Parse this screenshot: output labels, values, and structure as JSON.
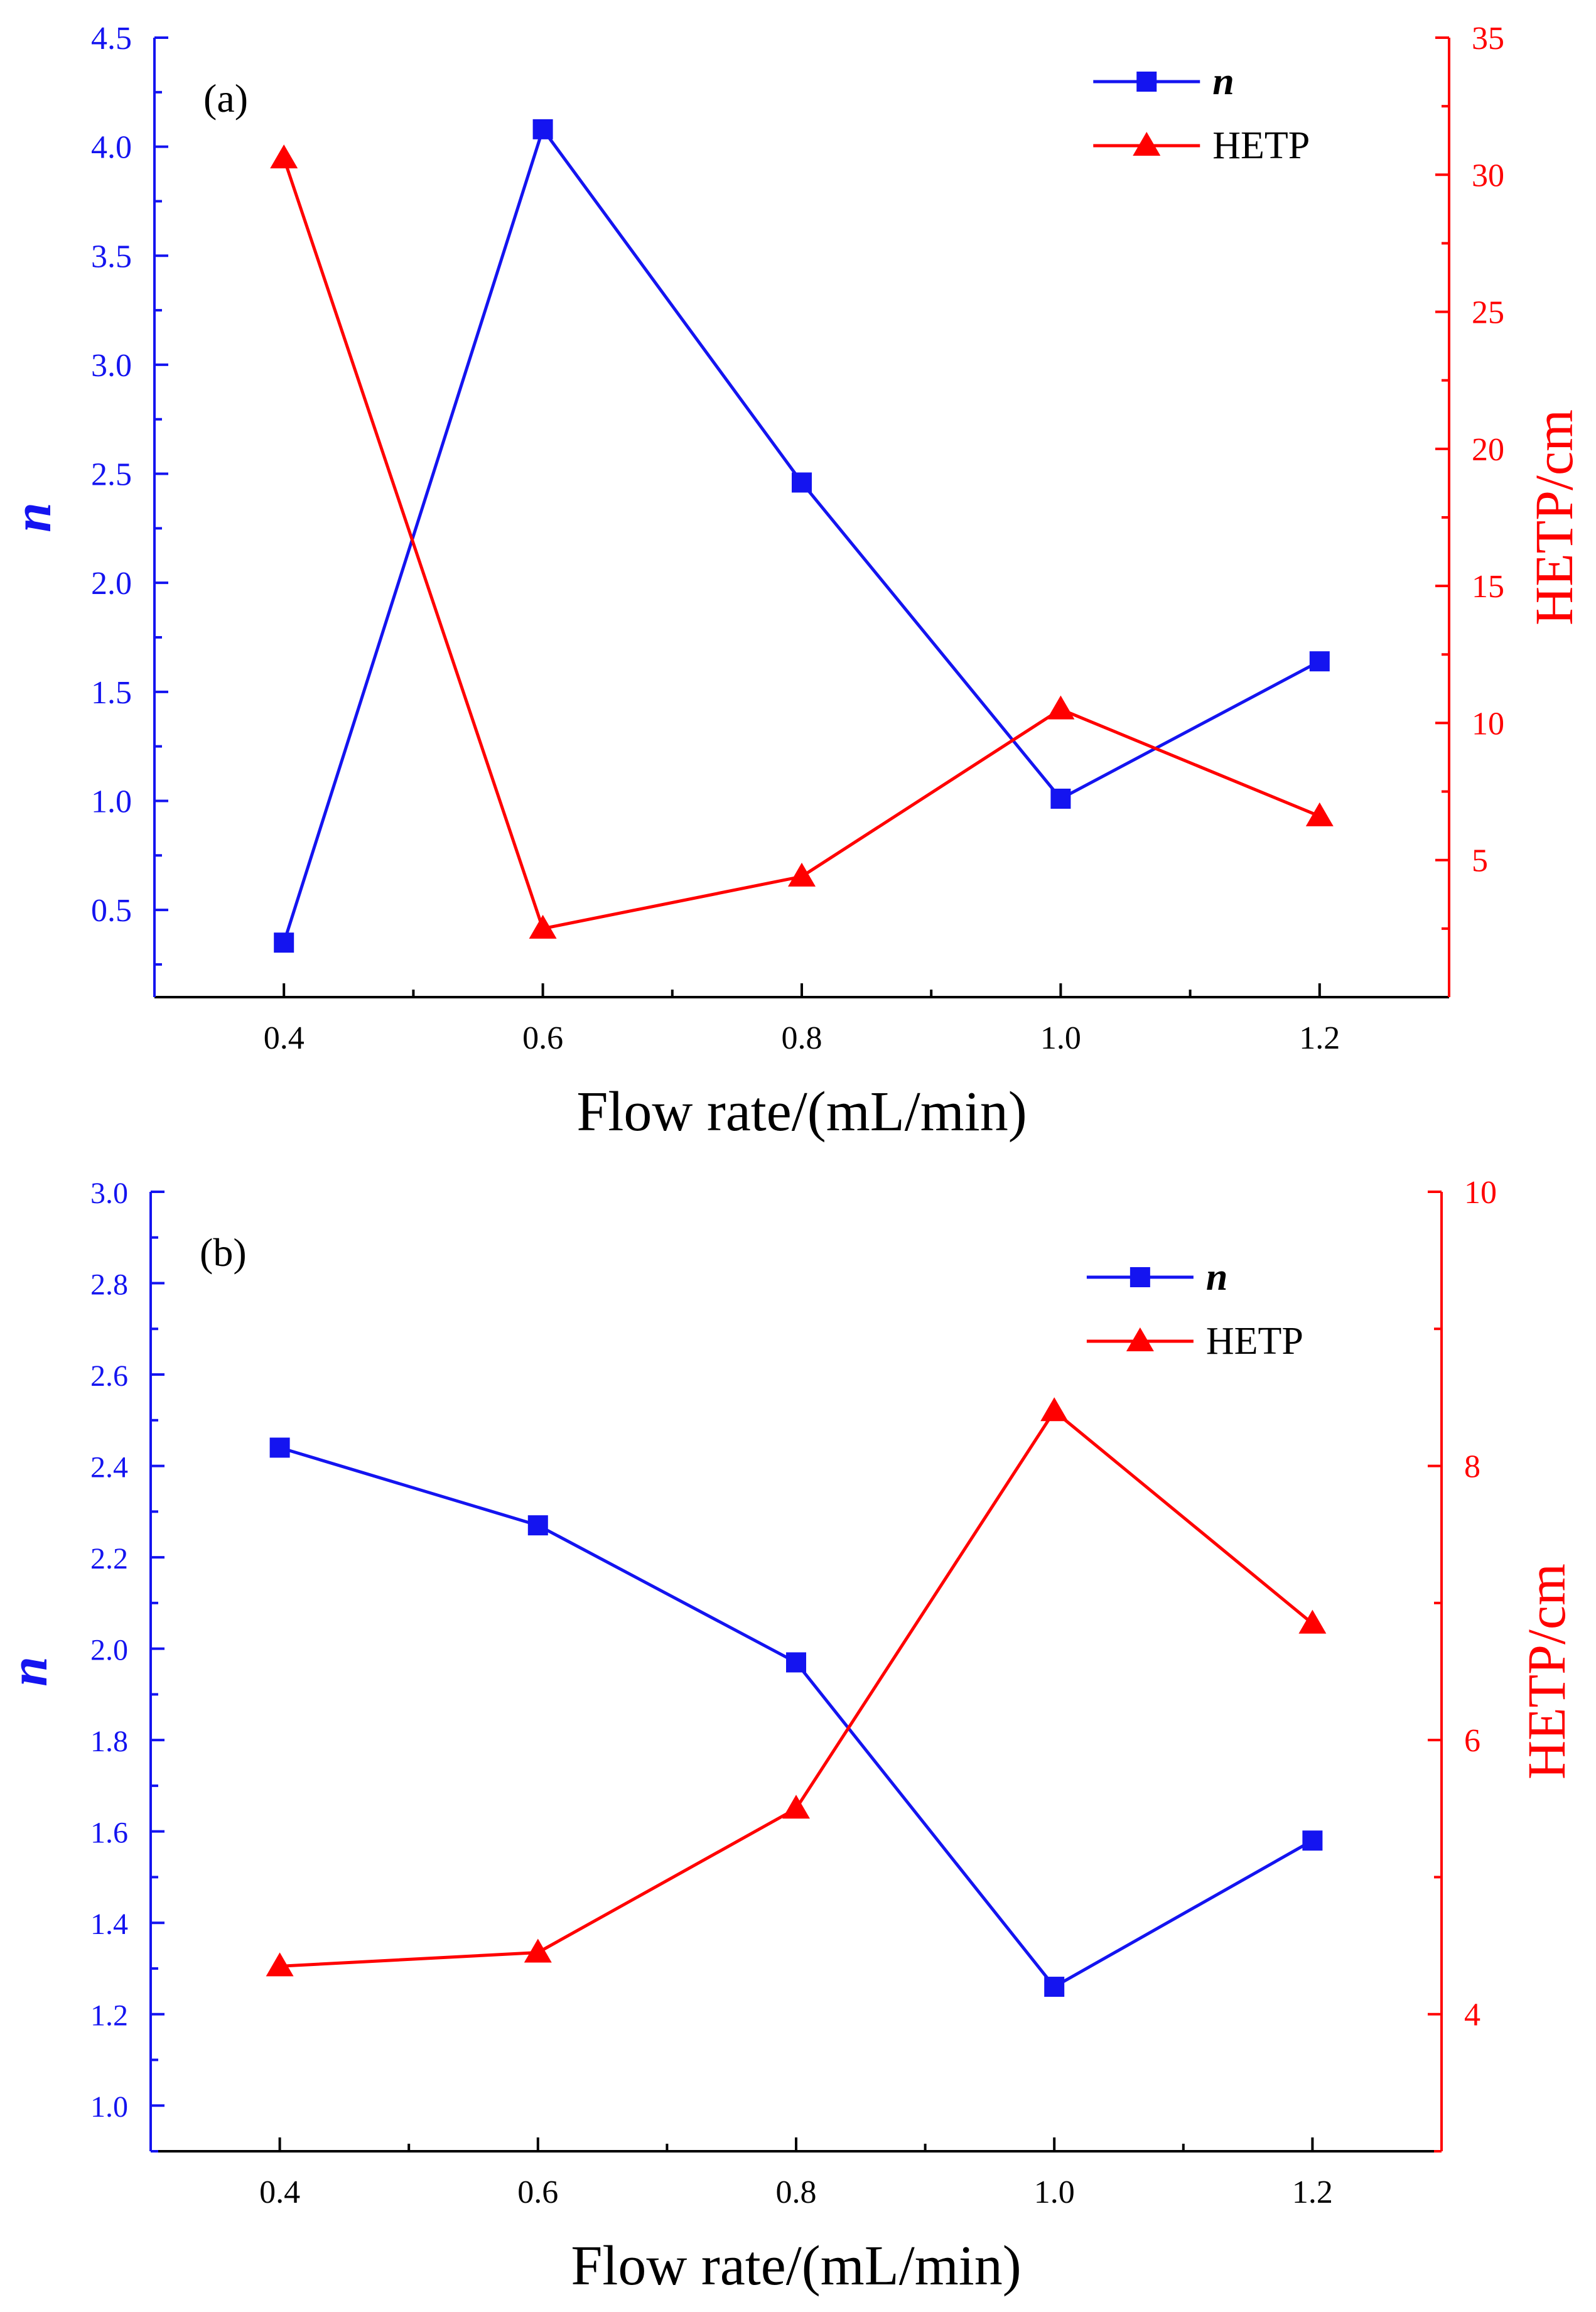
{
  "chart_data": [
    {
      "type": "line",
      "panel_label": "(a)",
      "xlabel": "Flow rate/(mL/min)",
      "ylabel_left": "n",
      "ylabel_right": "HETP/cm",
      "xlim": [
        0.3,
        1.3
      ],
      "ylim_left": [
        0.1,
        4.5
      ],
      "ylim_right": [
        0,
        35
      ],
      "x_ticks": [
        "0.4",
        "0.6",
        "0.8",
        "1.0",
        "1.2"
      ],
      "y_left_ticks": [
        "0.5",
        "1.0",
        "1.5",
        "2.0",
        "2.5",
        "3.0",
        "3.5",
        "4.0",
        "4.5"
      ],
      "y_right_ticks": [
        "5",
        "10",
        "15",
        "20",
        "25",
        "30",
        "35"
      ],
      "x": [
        0.4,
        0.6,
        0.8,
        1.0,
        1.2
      ],
      "legend": {
        "position": "top-right",
        "entries": [
          "n",
          "HETP"
        ]
      },
      "series": [
        {
          "name": "n",
          "axis": "left",
          "marker": "square",
          "color": "#1414f0",
          "values": [
            0.35,
            4.08,
            2.46,
            1.01,
            1.64
          ]
        },
        {
          "name": "HETP",
          "axis": "right",
          "marker": "triangle",
          "color": "#ff0000",
          "values": [
            30.6,
            2.5,
            4.4,
            10.5,
            6.6
          ]
        }
      ]
    },
    {
      "type": "line",
      "panel_label": "(b)",
      "xlabel": "Flow rate/(mL/min)",
      "ylabel_left": "n",
      "ylabel_right": "HETP/cm",
      "xlim": [
        0.3,
        1.3
      ],
      "ylim_left": [
        0.9,
        3.0
      ],
      "ylim_right": [
        3,
        10
      ],
      "x_ticks": [
        "0.4",
        "0.6",
        "0.8",
        "1.0",
        "1.2"
      ],
      "y_left_ticks": [
        "1.0",
        "1.2",
        "1.4",
        "1.6",
        "1.8",
        "2.0",
        "2.2",
        "2.4",
        "2.6",
        "2.8",
        "3.0"
      ],
      "y_right_ticks": [
        "4",
        "6",
        "8",
        "10"
      ],
      "x": [
        0.4,
        0.6,
        0.8,
        1.0,
        1.2
      ],
      "legend": {
        "position": "top-right",
        "entries": [
          "n",
          "HETP"
        ]
      },
      "series": [
        {
          "name": "n",
          "axis": "left",
          "marker": "square",
          "color": "#1414f0",
          "values": [
            2.44,
            2.27,
            1.97,
            1.26,
            1.58
          ]
        },
        {
          "name": "HETP",
          "axis": "right",
          "marker": "triangle",
          "color": "#ff0000",
          "values": [
            4.35,
            4.45,
            5.5,
            8.4,
            6.85
          ]
        }
      ]
    }
  ]
}
